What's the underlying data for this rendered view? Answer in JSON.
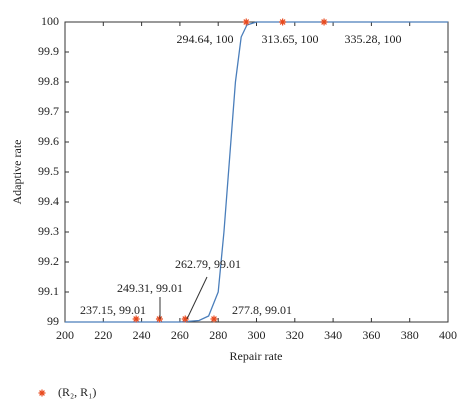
{
  "chart_data": {
    "type": "scatter",
    "xlabel": "Repair rate",
    "ylabel": "Adaptive rate",
    "xlim": [
      200,
      400
    ],
    "xticks": [
      200,
      220,
      240,
      260,
      280,
      300,
      320,
      340,
      360,
      380,
      400
    ],
    "ylim": [
      99,
      100
    ],
    "yticks": [
      99,
      99.1,
      99.2,
      99.3,
      99.4,
      99.5,
      99.6,
      99.7,
      99.8,
      99.9,
      100
    ],
    "series": [
      {
        "name": "(R₂, R₁)",
        "color": "#e8491d",
        "x": [
          237.15,
          249.31,
          262.79,
          277.8,
          294.64,
          313.65,
          335.28
        ],
        "values": [
          99.01,
          99.01,
          99.01,
          99.01,
          100,
          100,
          100
        ],
        "value_labels": [
          "237.15, 99.01",
          "249.31, 99.01",
          "262.79, 99.01",
          "277.8, 99.01",
          "294.64, 100",
          "313.65, 100",
          "335.28, 100"
        ]
      },
      {
        "type": "line",
        "color": "#4a7ebb",
        "x": [
          200,
          260,
          270,
          275,
          280,
          283,
          286,
          289,
          292,
          295,
          300,
          320,
          400
        ],
        "values": [
          99.0,
          99.0,
          99.005,
          99.02,
          99.1,
          99.3,
          99.55,
          99.8,
          99.95,
          99.99,
          100,
          100,
          100
        ]
      }
    ]
  }
}
